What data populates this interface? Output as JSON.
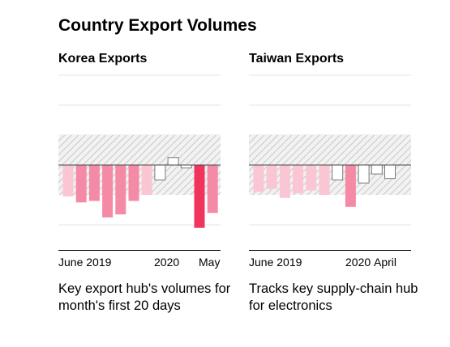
{
  "title": "Country Export Volumes",
  "chart_data": [
    {
      "type": "bar",
      "title": "Korea Exports",
      "xlabel": "",
      "ylabel": "",
      "baseline": 0,
      "shaded_band": [
        -10,
        10
      ],
      "ylim": [
        -30,
        30
      ],
      "x_tick_labels": [
        "June 2019",
        "2020",
        "May"
      ],
      "values": [
        -10.5,
        -12.5,
        -12.0,
        -17.5,
        -16.5,
        -12.0,
        -10.0,
        -5.0,
        2.5,
        -1.0,
        -21.0,
        -16.0
      ],
      "caption": "Key export hub's volumes for month's first 20 days"
    },
    {
      "type": "bar",
      "title": "Taiwan Exports",
      "xlabel": "",
      "ylabel": "",
      "baseline": 0,
      "shaded_band": [
        -10,
        10
      ],
      "ylim": [
        -30,
        30
      ],
      "x_tick_labels": [
        "June 2019",
        "2020",
        "April"
      ],
      "values": [
        -9.0,
        -8.0,
        -11.0,
        -9.5,
        -8.5,
        -10.0,
        -5.0,
        -14.0,
        -6.0,
        -3.0,
        -4.5
      ],
      "caption": "Tracks key supply-chain hub for electronics"
    }
  ],
  "colors": {
    "deep": "#f0345e",
    "mid": "#f48aa6",
    "light": "#fbc6d3",
    "neutral": "#ffffff",
    "bar_stroke": "#7a7a7a",
    "hatch": "#c8c8c8",
    "grid": "#e6e6e6"
  }
}
